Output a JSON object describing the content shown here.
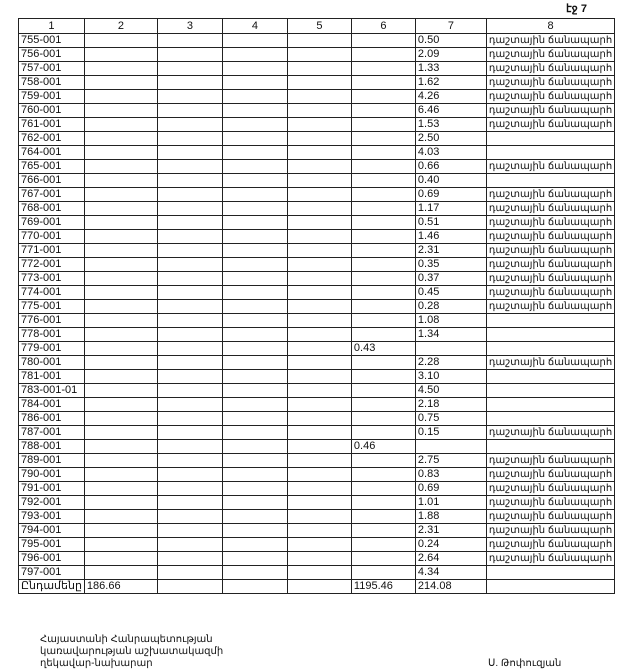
{
  "header": {
    "page": "էջ 7"
  },
  "table": {
    "columns": [
      "1",
      "2",
      "3",
      "4",
      "5",
      "6",
      "7",
      "8"
    ],
    "rows": [
      {
        "1": "755-001",
        "7": "0.50",
        "8": "դաշտային ճանապարհ"
      },
      {
        "1": "756-001",
        "7": "2.09",
        "8": "դաշտային ճանապարհ"
      },
      {
        "1": "757-001",
        "7": "1.33",
        "8": "դաշտային ճանապարհ"
      },
      {
        "1": "758-001",
        "7": "1.62",
        "8": "դաշտային ճանապարհ"
      },
      {
        "1": "759-001",
        "7": "4.26",
        "8": "դաշտային ճանապարհ"
      },
      {
        "1": "760-001",
        "7": "6.46",
        "8": "դաշտային ճանապարհ"
      },
      {
        "1": "761-001",
        "7": "1.53",
        "8": "դաշտային ճանապարհ"
      },
      {
        "1": "762-001",
        "7": "2.50"
      },
      {
        "1": "764-001",
        "7": "4.03"
      },
      {
        "1": "765-001",
        "7": "0.66",
        "8": "դաշտային ճանապարհ"
      },
      {
        "1": "766-001",
        "7": "0.40"
      },
      {
        "1": "767-001",
        "7": "0.69",
        "8": "դաշտային ճանապարհ"
      },
      {
        "1": "768-001",
        "7": "1.17",
        "8": "դաշտային ճանապարհ"
      },
      {
        "1": "769-001",
        "7": "0.51",
        "8": "դաշտային ճանապարհ"
      },
      {
        "1": "770-001",
        "7": "1.46",
        "8": "դաշտային ճանապարհ"
      },
      {
        "1": "771-001",
        "7": "2.31",
        "8": "դաշտային ճանապարհ"
      },
      {
        "1": "772-001",
        "7": "0.35",
        "8": "դաշտային ճանապարհ"
      },
      {
        "1": "773-001",
        "7": "0.37",
        "8": "դաշտային ճանապարհ"
      },
      {
        "1": "774-001",
        "7": "0.45",
        "8": "դաշտային ճանապարհ"
      },
      {
        "1": "775-001",
        "7": "0.28",
        "8": "դաշտային ճանապարհ"
      },
      {
        "1": "776-001",
        "7": "1.08"
      },
      {
        "1": "778-001",
        "7": "1.34"
      },
      {
        "1": "779-001",
        "6": "0.43"
      },
      {
        "1": "780-001",
        "7": "2.28",
        "8": "դաշտային ճանապարհ"
      },
      {
        "1": "781-001",
        "7": "3.10"
      },
      {
        "1": "783-001-01",
        "7": "4.50"
      },
      {
        "1": "784-001",
        "7": "2.18"
      },
      {
        "1": "786-001",
        "7": "0.75"
      },
      {
        "1": "787-001",
        "7": "0.15",
        "8": "դաշտային ճանապարհ"
      },
      {
        "1": "788-001",
        "6": "0.46"
      },
      {
        "1": "789-001",
        "7": "2.75",
        "8": "դաշտային ճանապարհ"
      },
      {
        "1": "790-001",
        "7": "0.83",
        "8": "դաշտային ճանապարհ"
      },
      {
        "1": "791-001",
        "7": "0.69",
        "8": "դաշտային ճանապարհ"
      },
      {
        "1": "792-001",
        "7": "1.01",
        "8": "դաշտային ճանապարհ"
      },
      {
        "1": "793-001",
        "7": "1.88",
        "8": "դաշտային ճանապարհ"
      },
      {
        "1": "794-001",
        "7": "2.31",
        "8": "դաշտային ճանապարհ"
      },
      {
        "1": "795-001",
        "7": "0.24",
        "8": "դաշտային ճանապարհ"
      },
      {
        "1": "796-001",
        "7": "2.64",
        "8": "դաշտային ճանապարհ"
      },
      {
        "1": "797-001",
        "7": "4.34"
      }
    ],
    "total": {
      "1": "Ընդամենը",
      "2": "186.66",
      "6": "1195.46",
      "7": "214.08"
    }
  },
  "footer": {
    "position": [
      "Հայաստանի Հանրապետության",
      "կառավարության աշխատակազմի",
      "ղեկավար-նախարար"
    ],
    "signature": "Ս. Թոփուզյան"
  }
}
